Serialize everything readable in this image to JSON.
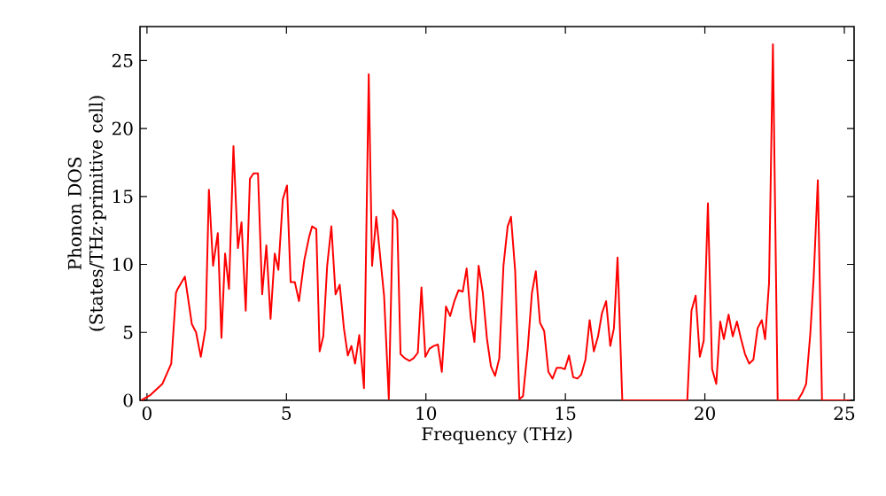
{
  "chart_data": {
    "type": "line",
    "xlabel": "Frequency (THz)",
    "ylabel": "Phonon DOS (States/THz·primitive cell)",
    "xlim": [
      -0.25,
      25.35
    ],
    "ylim": [
      0,
      27.5
    ],
    "xticks": [
      0,
      5,
      10,
      15,
      20,
      25
    ],
    "yticks": [
      0,
      5,
      10,
      15,
      20,
      25
    ],
    "grid": false,
    "marker": "none",
    "line_style": "solid",
    "series": [
      {
        "color": "#ff0000",
        "x": [
          -0.2,
          0.13,
          0.55,
          0.87,
          1.04,
          1.1,
          1.36,
          1.61,
          1.76,
          1.93,
          2.1,
          2.22,
          2.37,
          2.54,
          2.67,
          2.8,
          2.94,
          3.1,
          3.26,
          3.39,
          3.54,
          3.69,
          3.82,
          3.98,
          4.13,
          4.28,
          4.43,
          4.58,
          4.71,
          4.87,
          5.02,
          5.15,
          5.3,
          5.45,
          5.64,
          5.81,
          5.92,
          6.07,
          6.19,
          6.32,
          6.46,
          6.61,
          6.76,
          6.91,
          7.06,
          7.2,
          7.33,
          7.46,
          7.61,
          7.78,
          7.95,
          8.07,
          8.22,
          8.5,
          8.67,
          8.82,
          8.97,
          9.09,
          9.24,
          9.41,
          9.56,
          9.71,
          9.84,
          9.98,
          10.13,
          10.28,
          10.43,
          10.57,
          10.72,
          10.87,
          11.02,
          11.17,
          11.32,
          11.46,
          11.61,
          11.74,
          11.89,
          12.04,
          12.19,
          12.33,
          12.48,
          12.63,
          12.78,
          12.93,
          13.05,
          13.2,
          13.35,
          13.48,
          13.65,
          13.8,
          13.94,
          14.09,
          14.24,
          14.39,
          14.54,
          14.69,
          14.83,
          14.98,
          15.13,
          15.28,
          15.43,
          15.57,
          15.72,
          15.87,
          16.02,
          16.17,
          16.31,
          16.46,
          16.61,
          16.74,
          16.87,
          17.04,
          19.37,
          19.52,
          19.67,
          19.82,
          19.96,
          20.11,
          20.26,
          20.41,
          20.55,
          20.68,
          20.85,
          21.0,
          21.15,
          21.3,
          21.44,
          21.59,
          21.74,
          21.89,
          22.04,
          22.16,
          22.3,
          22.44,
          22.61,
          23.33,
          23.48,
          23.63,
          23.78,
          23.9,
          24.05,
          24.2,
          25.2
        ],
        "values": [
          0,
          0.4,
          1.2,
          2.7,
          7.9,
          8.2,
          9.1,
          5.6,
          5.0,
          3.2,
          5.3,
          15.5,
          9.9,
          12.3,
          4.6,
          10.8,
          8.2,
          18.7,
          11.2,
          13.1,
          6.6,
          16.3,
          16.7,
          16.7,
          7.8,
          11.4,
          6.0,
          10.8,
          9.6,
          14.8,
          15.8,
          8.7,
          8.7,
          7.3,
          10.3,
          12.0,
          12.8,
          12.6,
          3.6,
          4.7,
          9.9,
          12.8,
          7.8,
          8.5,
          5.3,
          3.3,
          4.0,
          2.7,
          4.8,
          0.9,
          24.0,
          9.9,
          13.5,
          7.7,
          0.1,
          14.0,
          13.3,
          3.4,
          3.1,
          2.9,
          3.1,
          3.5,
          8.3,
          3.2,
          3.8,
          4.0,
          4.1,
          2.1,
          6.9,
          6.2,
          7.3,
          8.1,
          8.0,
          9.7,
          6.0,
          4.3,
          9.9,
          7.9,
          4.5,
          2.5,
          1.8,
          3.1,
          9.9,
          12.8,
          13.5,
          9.5,
          0.1,
          0.3,
          3.8,
          7.9,
          9.5,
          5.7,
          5.1,
          2.1,
          1.6,
          2.4,
          2.4,
          2.3,
          3.3,
          1.7,
          1.6,
          1.9,
          3.0,
          5.9,
          3.6,
          4.7,
          6.4,
          7.3,
          4.0,
          5.3,
          10.5,
          0,
          0,
          6.6,
          7.7,
          3.2,
          4.4,
          14.5,
          2.3,
          1.2,
          5.8,
          4.5,
          6.3,
          4.7,
          5.8,
          4.5,
          3.4,
          2.7,
          3.0,
          5.3,
          5.9,
          4.5,
          8.6,
          26.2,
          0,
          0,
          0.5,
          1.2,
          4.9,
          9.0,
          16.2,
          0,
          0
        ]
      }
    ]
  }
}
